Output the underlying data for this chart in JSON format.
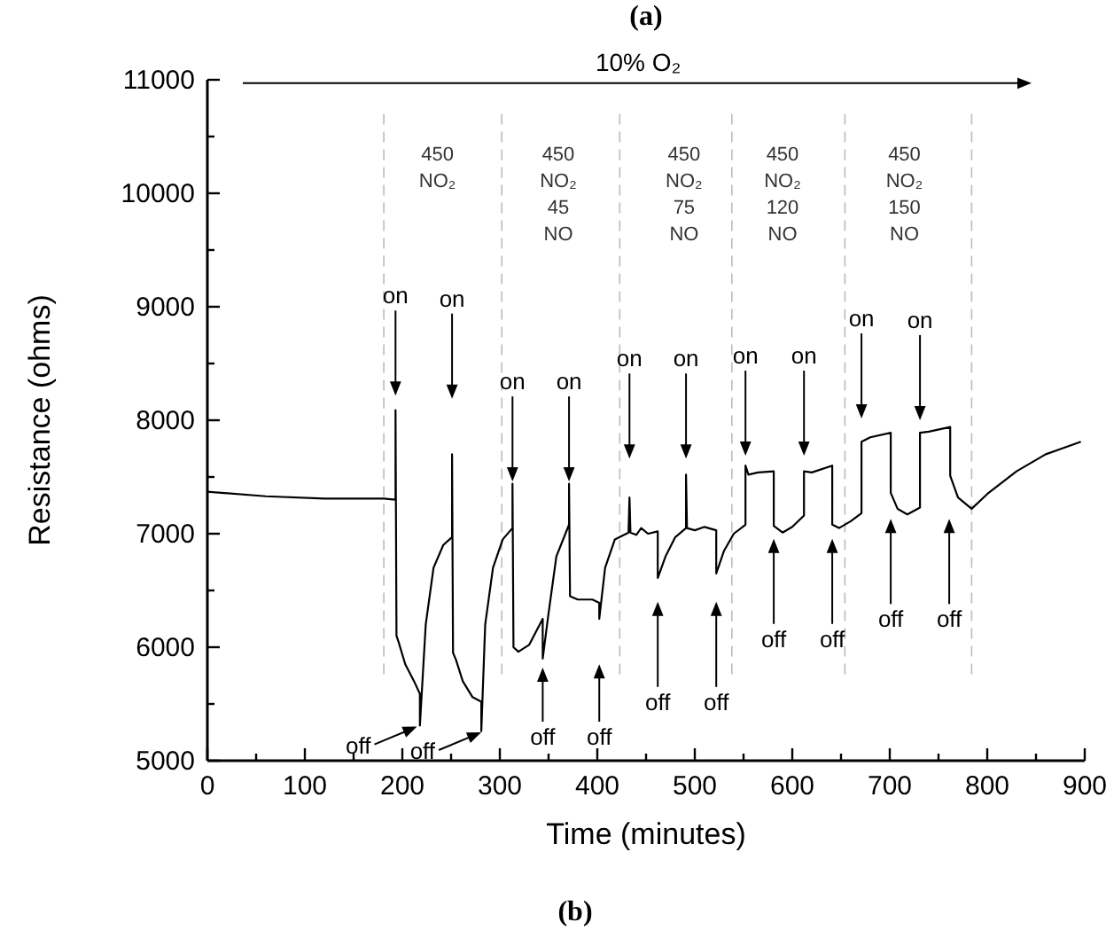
{
  "chart_data": {
    "type": "line",
    "title": "(a)",
    "xlabel": "Time (minutes)",
    "ylabel": "Resistance (ohms)",
    "xlim": [
      0,
      900
    ],
    "ylim": [
      5000,
      11000
    ],
    "xticks": [
      0,
      {
        "value": 50,
        "label": null
      },
      100,
      {
        "value": 150,
        "label": null
      },
      200,
      {
        "value": 250,
        "label": null
      },
      300,
      {
        "value": 350,
        "label": null
      },
      400,
      {
        "value": 450,
        "label": null
      },
      500,
      {
        "value": 550,
        "label": null
      },
      600,
      {
        "value": 650,
        "label": null
      },
      700,
      {
        "value": 750,
        "label": null
      },
      800,
      {
        "value": 850,
        "label": null
      },
      900
    ],
    "yticks": [
      5000,
      {
        "value": 5500,
        "label": null
      },
      6000,
      {
        "value": 6500,
        "label": null
      },
      7000,
      {
        "value": 7500,
        "label": null
      },
      8000,
      {
        "value": 8500,
        "label": null
      },
      9000,
      {
        "value": 9500,
        "label": null
      },
      10000,
      {
        "value": 10500,
        "label": null
      },
      11000
    ],
    "grid": false,
    "marker": "none",
    "line_style": "solid",
    "series": [
      {
        "color": "#000000",
        "x": [
          0,
          60,
          120,
          181,
          193,
          193,
          194,
          196,
          203,
          212,
          218,
          218,
          224,
          232,
          242,
          251,
          251,
          252,
          255,
          262,
          272,
          281,
          281,
          285,
          293,
          303,
          313,
          313,
          314,
          319,
          330,
          344,
          344,
          350,
          358,
          371,
          371,
          372,
          380,
          395,
          402,
          402,
          408,
          418,
          432,
          433,
          434,
          440,
          445,
          452,
          462,
          462,
          470,
          480,
          491,
          491,
          492,
          500,
          510,
          522,
          522,
          530,
          540,
          552,
          552,
          555,
          565,
          581,
          581,
          590,
          600,
          612,
          612,
          620,
          641,
          641,
          648,
          660,
          671,
          671,
          680,
          701,
          701,
          708,
          718,
          731,
          731,
          740,
          762,
          762,
          770,
          784,
          800,
          830,
          860,
          896
        ],
        "values": [
          7370,
          7330,
          7310,
          7310,
          7300,
          8090,
          6100,
          6050,
          5850,
          5700,
          5590,
          5310,
          6200,
          6700,
          6900,
          6970,
          7700,
          5950,
          5890,
          5700,
          5560,
          5520,
          5260,
          6200,
          6700,
          6950,
          7050,
          7440,
          6000,
          5960,
          6020,
          6250,
          5900,
          6300,
          6800,
          7080,
          7440,
          6450,
          6420,
          6420,
          6390,
          6250,
          6700,
          6950,
          7010,
          7320,
          7010,
          6990,
          7050,
          7000,
          7020,
          6610,
          6800,
          6970,
          7050,
          7520,
          7050,
          7030,
          7060,
          7030,
          6650,
          6850,
          7000,
          7080,
          7600,
          7520,
          7540,
          7550,
          7070,
          7010,
          7060,
          7160,
          7550,
          7540,
          7600,
          7080,
          7050,
          7110,
          7180,
          7810,
          7850,
          7890,
          7360,
          7220,
          7170,
          7230,
          7890,
          7900,
          7940,
          7510,
          7320,
          7220,
          7350,
          7550,
          7700,
          7810
        ]
      }
    ],
    "ref_lines": [
      {
        "axis": "x",
        "value": 181,
        "color": "#bbbbbb",
        "line_style": "dashed"
      },
      {
        "axis": "x",
        "value": 302,
        "color": "#bbbbbb",
        "line_style": "dashed"
      },
      {
        "axis": "x",
        "value": 423,
        "color": "#bbbbbb",
        "line_style": "dashed"
      },
      {
        "axis": "x",
        "value": 538,
        "color": "#bbbbbb",
        "line_style": "dashed"
      },
      {
        "axis": "x",
        "value": 654,
        "color": "#bbbbbb",
        "line_style": "dashed"
      },
      {
        "axis": "x",
        "value": 784,
        "color": "#bbbbbb",
        "line_style": "dashed"
      }
    ],
    "annotations": [
      "(b)",
      "10% O₂",
      "450\nNO₂",
      "450\nNO₂\n45\nNO",
      "450\nNO₂\n75\nNO",
      "450\nNO₂\n120\nNO",
      "450\nNO₂\n150\nNO",
      "on",
      "on",
      "on",
      "on",
      "on",
      "on",
      "on",
      "on",
      "on",
      "on",
      "off",
      "off",
      "off",
      "off",
      "off",
      "off",
      "off",
      "off",
      "off",
      "off"
    ]
  }
}
